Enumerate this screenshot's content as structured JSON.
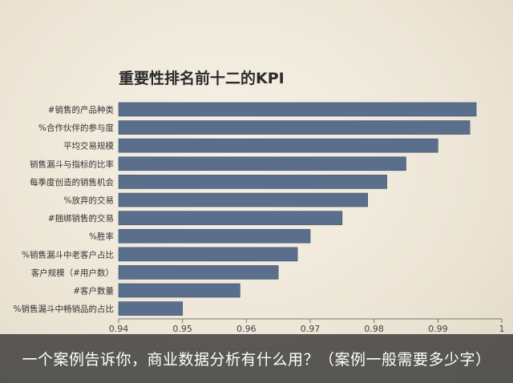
{
  "chart_data": {
    "type": "bar",
    "orientation": "horizontal",
    "title": "重要性排名前十二的KPI",
    "categories": [
      "#销售的产品种类",
      "%合作伙伴的参与度",
      "平均交易规模",
      "销售漏斗与指标的比率",
      "每季度创造的销售机会",
      "%放弃的交易",
      "#捆绑销售的交易",
      "%胜率",
      "%销售漏斗中老客户占比",
      "客户规模（#用户数）",
      "#客户数量",
      "%销售漏斗中畅销品的占比"
    ],
    "values": [
      0.996,
      0.995,
      0.99,
      0.985,
      0.982,
      0.979,
      0.975,
      0.97,
      0.968,
      0.965,
      0.959,
      0.95
    ],
    "xlim": [
      0.94,
      1.0
    ],
    "xticks": [
      "0.94",
      "0.95",
      "0.96",
      "0.97",
      "0.98",
      "0.99",
      "1"
    ],
    "grid": false,
    "colors": {
      "bar": "#5a6f8c",
      "bar_edge": "#3f526c"
    }
  },
  "caption": "一个案例告诉你，商业数据分析有什么用？（案例一般需要多少字）"
}
